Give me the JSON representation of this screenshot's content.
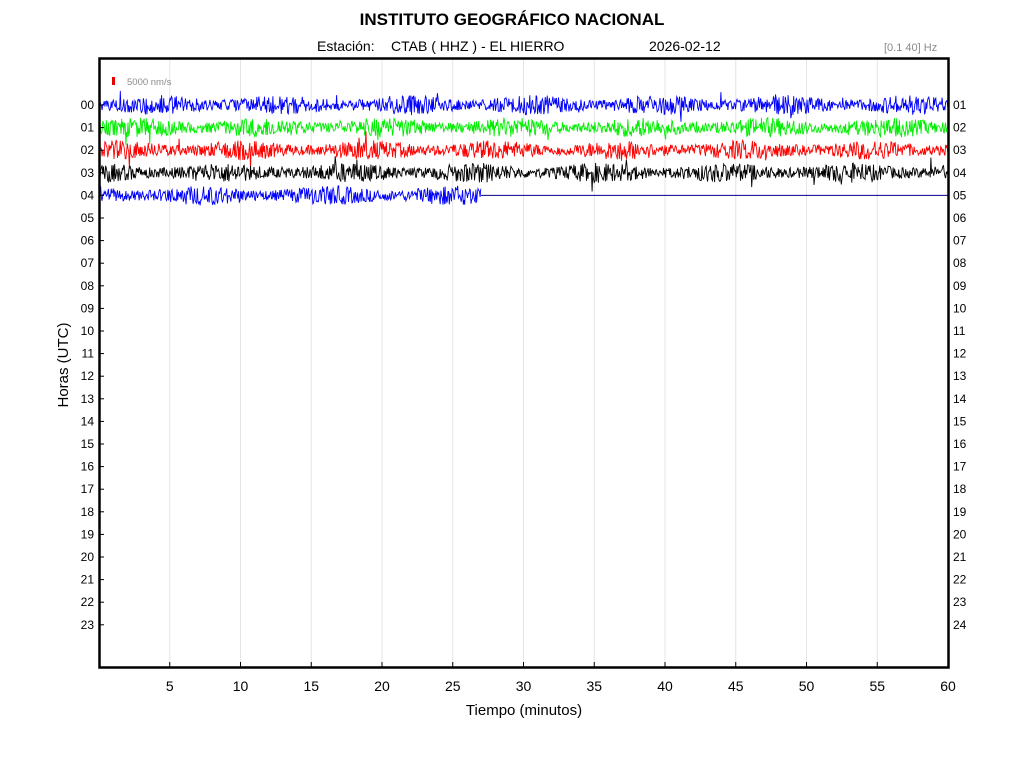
{
  "header": {
    "title": "INSTITUTO GEOGRÁFICO NACIONAL",
    "station_label": "Estación:",
    "station_value": "CTAB ( HHZ ) - EL HIERRO",
    "date": "2026-02-12",
    "filter": "[0.1 40] Hz"
  },
  "scale_bar": {
    "label": "5000 nm/s",
    "color": "#e60000"
  },
  "colors": {
    "blue": "#0000ff",
    "green": "#00ee00",
    "red": "#ff0000",
    "black": "#000000",
    "grid": "#e4e4e4"
  },
  "chart_data": {
    "type": "line",
    "title": "INSTITUTO GEOGRÁFICO NACIONAL",
    "xlabel": "Tiempo (minutos)",
    "ylabel": "Horas (UTC)",
    "xlim": [
      0,
      60
    ],
    "x_ticks": [
      "5",
      "10",
      "15",
      "20",
      "25",
      "30",
      "35",
      "40",
      "45",
      "50",
      "55",
      "60"
    ],
    "y_ticks_left": [
      "00",
      "01",
      "02",
      "03",
      "04",
      "05",
      "06",
      "07",
      "08",
      "09",
      "10",
      "11",
      "12",
      "13",
      "14",
      "15",
      "16",
      "17",
      "18",
      "19",
      "20",
      "21",
      "22",
      "23"
    ],
    "y_ticks_right": [
      "01",
      "02",
      "03",
      "04",
      "05",
      "06",
      "07",
      "08",
      "09",
      "10",
      "11",
      "12",
      "13",
      "14",
      "15",
      "16",
      "17",
      "18",
      "19",
      "20",
      "21",
      "22",
      "23",
      "24"
    ],
    "grid": "vertical",
    "series": [
      {
        "hour": 0,
        "color": "blue",
        "end_minute": 60
      },
      {
        "hour": 1,
        "color": "green",
        "end_minute": 60
      },
      {
        "hour": 2,
        "color": "red",
        "end_minute": 60
      },
      {
        "hour": 3,
        "color": "black",
        "end_minute": 60
      },
      {
        "hour": 4,
        "color": "blue",
        "end_minute": 27
      }
    ]
  }
}
